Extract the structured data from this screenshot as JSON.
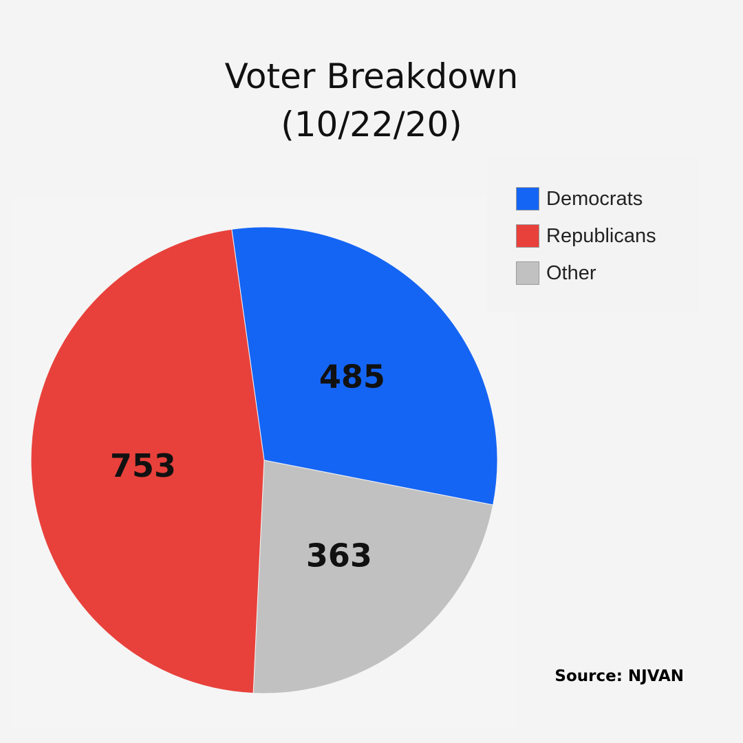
{
  "chart_data": {
    "type": "pie",
    "title": "Voter Breakdown",
    "subtitle": "(10/22/20)",
    "categories": [
      "Democrats",
      "Other",
      "Republicans"
    ],
    "values": [
      485,
      363,
      753
    ],
    "colors": [
      "#1565f4",
      "#c1c1c1",
      "#e8413b"
    ],
    "legend": [
      {
        "label": "Democrats",
        "color": "#1565f4"
      },
      {
        "label": "Republicans",
        "color": "#e8413b"
      },
      {
        "label": "Other",
        "color": "#c1c1c1"
      }
    ],
    "legend_position": "top-right",
    "start_angle_deg": -8
  },
  "source": "Source: NJVAN"
}
